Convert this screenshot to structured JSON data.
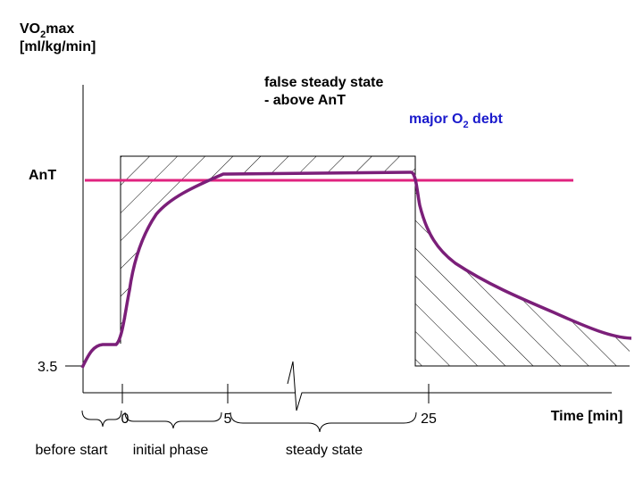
{
  "y_axis": {
    "label_parts": [
      "VO",
      "2",
      "max"
    ],
    "unit": "[ml/kg/min]",
    "baseline_label": "3.5"
  },
  "annotations": {
    "false_steady": [
      "false steady state",
      "- above AnT"
    ],
    "debt_parts": [
      "major O",
      "2",
      " debt"
    ],
    "threshold": "AnT"
  },
  "x_axis": {
    "ticks": [
      "0",
      "5",
      "25"
    ],
    "label": "Time [min]"
  },
  "phases": [
    "before start",
    "initial phase",
    "steady state"
  ]
}
